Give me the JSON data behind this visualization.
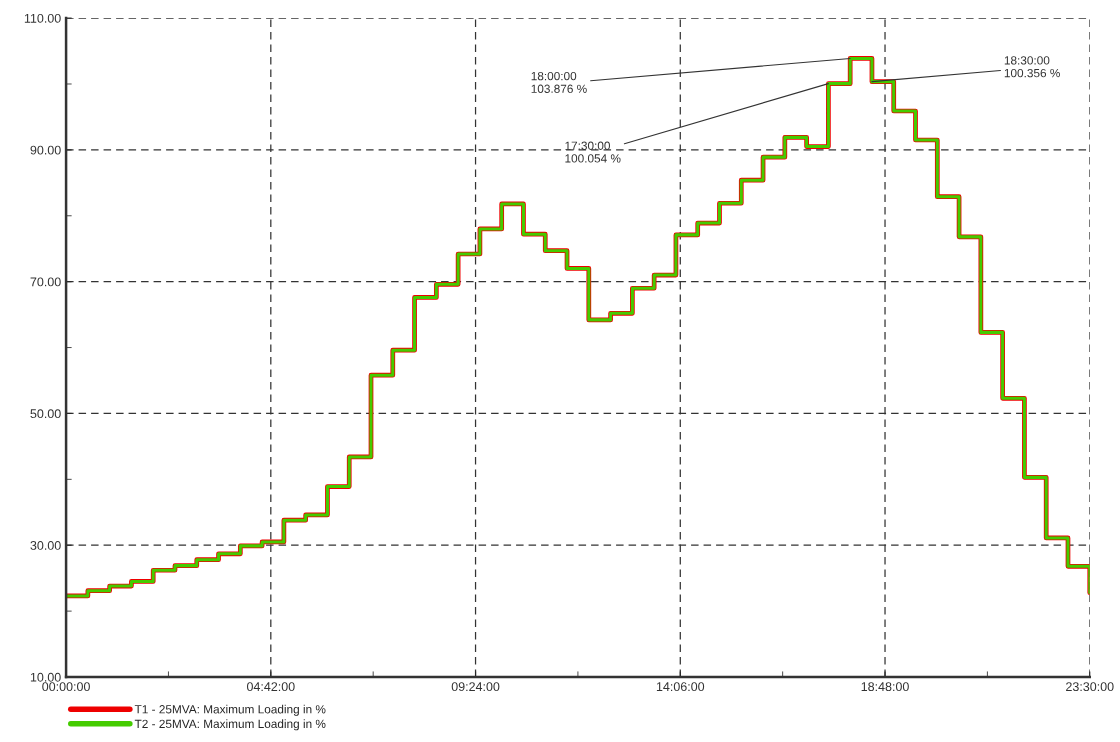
{
  "chart_data": {
    "type": "step",
    "x": [
      0,
      0.5,
      1,
      1.5,
      2,
      2.5,
      3,
      3.5,
      4,
      4.5,
      5,
      5.5,
      6,
      6.5,
      7,
      7.5,
      8,
      8.5,
      9,
      9.5,
      10,
      10.5,
      11,
      11.5,
      12,
      12.5,
      13,
      13.5,
      14,
      14.5,
      15,
      15.5,
      16,
      16.5,
      17,
      17.5,
      18,
      18.5,
      19,
      19.5,
      20,
      20.5,
      21,
      21.5,
      22,
      22.5,
      23,
      23.5
    ],
    "series": [
      {
        "name": "T1 - 25MVA: Maximum Loading in %",
        "color": "#ee0000",
        "values": [
          22.3,
          23.1,
          23.8,
          24.5,
          26.2,
          26.9,
          27.8,
          28.7,
          29.9,
          30.5,
          33.8,
          34.6,
          38.9,
          43.4,
          55.8,
          59.6,
          67.6,
          69.6,
          74.2,
          78.0,
          81.8,
          77.2,
          74.7,
          72.0,
          64.2,
          65.2,
          69.0,
          71.0,
          77.1,
          78.9,
          81.9,
          85.4,
          88.9,
          91.9,
          90.5,
          100.054,
          103.876,
          100.356,
          95.9,
          91.5,
          82.9,
          76.8,
          62.3,
          52.3,
          40.3,
          31.1,
          26.8,
          22.8
        ]
      },
      {
        "name": "T2 - 25MVA: Maximum Loading in %",
        "color": "#44cc00",
        "values": [
          22.3,
          23.1,
          23.8,
          24.5,
          26.2,
          26.9,
          27.8,
          28.7,
          29.9,
          30.5,
          33.8,
          34.6,
          38.9,
          43.4,
          55.8,
          59.6,
          67.6,
          69.6,
          74.2,
          78.0,
          81.8,
          77.2,
          74.7,
          72.0,
          64.2,
          65.2,
          69.0,
          71.0,
          77.1,
          78.9,
          81.9,
          85.4,
          88.9,
          91.9,
          90.5,
          100.054,
          103.876,
          100.356,
          95.9,
          91.5,
          82.9,
          76.8,
          62.3,
          52.3,
          40.3,
          31.1,
          26.8,
          22.8
        ]
      }
    ],
    "xlim": [
      0,
      23.5
    ],
    "xticks": [
      {
        "value": 0,
        "label": "00:00:00"
      },
      {
        "value": 2.35,
        "label": null
      },
      {
        "value": 4.7,
        "label": "04:42:00"
      },
      {
        "value": 7.05,
        "label": null
      },
      {
        "value": 9.4,
        "label": "09:24:00"
      },
      {
        "value": 11.75,
        "label": null
      },
      {
        "value": 14.1,
        "label": "14:06:00"
      },
      {
        "value": 16.45,
        "label": null
      },
      {
        "value": 18.8,
        "label": "18:48:00"
      },
      {
        "value": 21.15,
        "label": null
      },
      {
        "value": 23.5,
        "label": "23:30:00"
      }
    ],
    "ylim": [
      10,
      110
    ],
    "yticks": [
      {
        "value": 10,
        "label": "10.00"
      },
      {
        "value": 20,
        "label": null
      },
      {
        "value": 30,
        "label": "30.00"
      },
      {
        "value": 40,
        "label": null
      },
      {
        "value": 50,
        "label": "50.00"
      },
      {
        "value": 60,
        "label": null
      },
      {
        "value": 70,
        "label": "70.00"
      },
      {
        "value": 80,
        "label": null
      },
      {
        "value": 90,
        "label": "90.00"
      },
      {
        "value": 100,
        "label": null
      },
      {
        "value": 110,
        "label": "110.00"
      }
    ],
    "annotations": [
      {
        "text": "18:00:00\n103.876 %",
        "x": 18,
        "y": 103.876
      },
      {
        "text": "17:30:00\n100.054 %",
        "x": 17.5,
        "y": 100.054
      },
      {
        "text": "18:30:00\n100.356 %",
        "x": 18.5,
        "y": 100.356
      }
    ],
    "grid": true,
    "legend": "bottom left",
    "line_style": "solid",
    "marker": "none"
  }
}
